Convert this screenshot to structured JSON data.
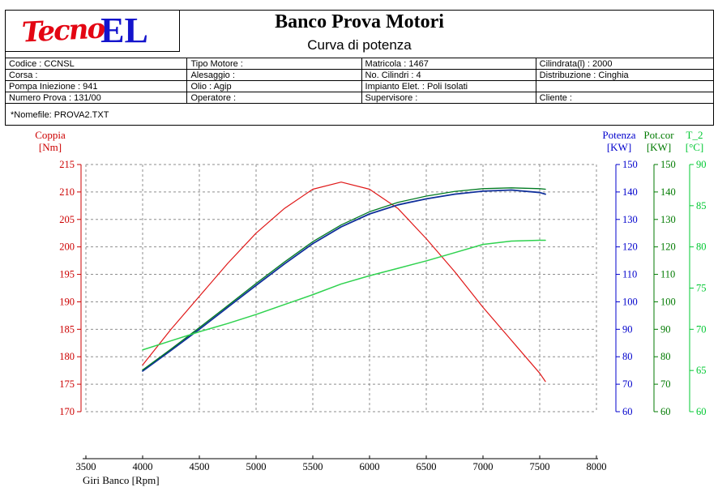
{
  "header": {
    "logo_tecno": "Tecno",
    "logo_el": "EL",
    "title": "Banco Prova Motori",
    "subtitle": "Curva di potenza"
  },
  "info_table": {
    "rows": [
      [
        "Codice : CCNSL",
        "Tipo Motore :",
        "Matricola : 1467",
        "Cilindrata(l) : 2000"
      ],
      [
        "Corsa :",
        "Alesaggio :",
        "No. Cilindri : 4",
        "Distribuzione : Cinghia"
      ],
      [
        "Pompa Iniezione : 941",
        "Olio : Agip",
        "Impianto Elet. : Poli Isolati",
        ""
      ],
      [
        "Numero Prova : 131/00",
        "Operatore :",
        "Supervisore :",
        "Cliente :"
      ]
    ]
  },
  "file_row": {
    "label": "*Nomefile:  PROVA2.TXT"
  },
  "chart_data": {
    "type": "line",
    "title": "Curva di potenza",
    "x_axis": {
      "label": "Giri Banco [Rpm]",
      "min": 3500,
      "max": 8000,
      "step": 500,
      "color": "#000000"
    },
    "y_axes": [
      {
        "id": "coppia",
        "title": "Coppia",
        "unit": "[Nm]",
        "min": 170,
        "max": 215,
        "step": 5,
        "color": "#cc0000",
        "side": "left"
      },
      {
        "id": "potenza",
        "title": "Potenza",
        "unit": "[KW]",
        "min": 60,
        "max": 150,
        "step": 10,
        "color": "#0000cc",
        "side": "right"
      },
      {
        "id": "potcor",
        "title": "Pot.cor",
        "unit": "[KW]",
        "min": 60,
        "max": 150,
        "step": 10,
        "color": "#007a00",
        "side": "right"
      },
      {
        "id": "t2",
        "title": "T_2",
        "unit": "[°C]",
        "min": 60,
        "max": 90,
        "step": 5,
        "color": "#00c832",
        "side": "right"
      }
    ],
    "grid": {
      "on": true,
      "style": "dashed",
      "color": "#8e8e8e"
    },
    "series": [
      {
        "name": "Coppia",
        "axis": "coppia",
        "color": "#e01818",
        "width": 1.2,
        "x": [
          4000,
          4250,
          4500,
          4750,
          5000,
          5250,
          5500,
          5750,
          6000,
          6250,
          6500,
          6750,
          7000,
          7250,
          7500,
          7550
        ],
        "values": [
          178.5,
          185,
          191,
          197,
          202.5,
          207,
          210.5,
          211.8,
          210.5,
          207,
          201.5,
          195.5,
          189,
          183,
          177,
          175.5
        ]
      },
      {
        "name": "Potenza",
        "axis": "potenza",
        "color": "#10309b",
        "width": 1.8,
        "x": [
          4000,
          4250,
          4500,
          4750,
          5000,
          5250,
          5500,
          5750,
          6000,
          6250,
          6500,
          6750,
          7000,
          7250,
          7500,
          7550
        ],
        "values": [
          74.8,
          82.3,
          90,
          98,
          106,
          113.8,
          121.2,
          127.3,
          132,
          135.3,
          137.5,
          139.2,
          140.3,
          140.7,
          139.8,
          139.2
        ]
      },
      {
        "name": "Pot.cor",
        "axis": "potcor",
        "color": "#007a22",
        "width": 1.3,
        "x": [
          4000,
          4250,
          4500,
          4750,
          5000,
          5250,
          5500,
          5750,
          6000,
          6250,
          6500,
          6750,
          7000,
          7250,
          7500,
          7550
        ],
        "values": [
          75.2,
          82.8,
          90.6,
          98.6,
          106.7,
          114.5,
          121.9,
          128,
          132.8,
          136.2,
          138.5,
          140.2,
          141.2,
          141.5,
          141.2,
          141
        ]
      },
      {
        "name": "T_2",
        "axis": "t2",
        "color": "#2fd24f",
        "width": 1.5,
        "x": [
          4000,
          4250,
          4500,
          4750,
          5000,
          5250,
          5500,
          5750,
          6000,
          6250,
          6500,
          6750,
          7000,
          7250,
          7500,
          7550
        ],
        "values": [
          67.5,
          68.6,
          69.7,
          70.7,
          71.8,
          73,
          74.2,
          75.5,
          76.5,
          77.4,
          78.3,
          79.3,
          80.3,
          80.7,
          80.8,
          80.8
        ]
      }
    ]
  }
}
